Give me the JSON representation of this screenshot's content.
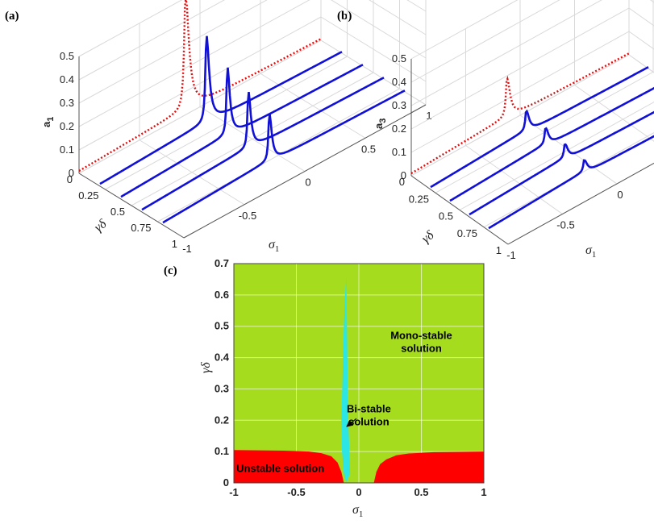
{
  "panels": {
    "a": {
      "label": "(a)",
      "zlabel_main": "a",
      "zlabel_sub": "1"
    },
    "b": {
      "label": "(b)",
      "zlabel_main": "a",
      "zlabel_sub": "3"
    },
    "c": {
      "label": "(c)"
    }
  },
  "chart_data": [
    {
      "type": "line",
      "panel": "a",
      "title": "",
      "xlabel_main": "σ",
      "xlabel_sub": "1",
      "ylabel": "γδ",
      "zlabel_main": "a",
      "zlabel_sub": "1",
      "x_ticks": [
        "-1",
        "-0.5",
        "0",
        "0.5",
        "1"
      ],
      "y_ticks": [
        "0",
        "0.25",
        "0.5",
        "0.75",
        "1"
      ],
      "z_ticks": [
        "0",
        "0.1",
        "0.2",
        "0.3",
        "0.4",
        "0.5"
      ],
      "xlim": [
        -1,
        1
      ],
      "ylim": [
        0,
        1
      ],
      "zlim": [
        0,
        0.5
      ],
      "series": [
        {
          "name": "γδ=0",
          "gamma_delta": 0,
          "peak_sigma": -0.12,
          "peak_amplitude": 0.5,
          "width": 0.1,
          "style": "dotted red (unstable)"
        },
        {
          "name": "γδ=0.2",
          "gamma_delta": 0.2,
          "peak_sigma": -0.12,
          "peak_amplitude": 0.38,
          "width": 0.08,
          "style": "solid blue"
        },
        {
          "name": "γδ=0.4",
          "gamma_delta": 0.4,
          "peak_sigma": -0.12,
          "peak_amplitude": 0.3,
          "width": 0.07,
          "style": "solid blue"
        },
        {
          "name": "γδ=0.6",
          "gamma_delta": 0.6,
          "peak_sigma": -0.12,
          "peak_amplitude": 0.25,
          "width": 0.07,
          "style": "solid blue"
        },
        {
          "name": "γδ=0.8",
          "gamma_delta": 0.8,
          "peak_sigma": -0.12,
          "peak_amplitude": 0.21,
          "width": 0.07,
          "style": "solid blue"
        }
      ]
    },
    {
      "type": "line",
      "panel": "b",
      "title": "",
      "xlabel_main": "σ",
      "xlabel_sub": "1",
      "ylabel": "γδ",
      "zlabel_main": "a",
      "zlabel_sub": "3",
      "x_ticks": [
        "-1",
        "-0.5",
        "0",
        "0.5",
        "1"
      ],
      "y_ticks": [
        "0",
        "0.25",
        "0.5",
        "0.75",
        "1"
      ],
      "z_ticks": [
        "0",
        "0.1",
        "0.2",
        "0.3",
        "0.4",
        "0.5"
      ],
      "xlim": [
        -1,
        1
      ],
      "ylim": [
        0,
        1
      ],
      "zlim": [
        0,
        0.5
      ],
      "series": [
        {
          "name": "γδ=0",
          "gamma_delta": 0,
          "peak_sigma": -0.12,
          "peak_amplitude": 0.17,
          "width": 0.1,
          "style": "dotted red (unstable)"
        },
        {
          "name": "γδ=0.2",
          "gamma_delta": 0.2,
          "peak_sigma": -0.12,
          "peak_amplitude": 0.09,
          "width": 0.09,
          "style": "solid blue"
        },
        {
          "name": "γδ=0.4",
          "gamma_delta": 0.4,
          "peak_sigma": -0.12,
          "peak_amplitude": 0.075,
          "width": 0.09,
          "style": "solid blue"
        },
        {
          "name": "γδ=0.6",
          "gamma_delta": 0.6,
          "peak_sigma": -0.12,
          "peak_amplitude": 0.065,
          "width": 0.09,
          "style": "solid blue"
        },
        {
          "name": "γδ=0.8",
          "gamma_delta": 0.8,
          "peak_sigma": -0.12,
          "peak_amplitude": 0.055,
          "width": 0.09,
          "style": "solid blue"
        }
      ]
    },
    {
      "type": "area",
      "panel": "c",
      "title": "",
      "xlabel_main": "σ",
      "xlabel_sub": "1",
      "ylabel": "γδ",
      "xlim": [
        -1,
        1
      ],
      "ylim": [
        0,
        0.7
      ],
      "x_ticks": [
        "-1",
        "-0.5",
        "0",
        "0.5",
        "1"
      ],
      "y_ticks": [
        "0",
        "0.1",
        "0.2",
        "0.3",
        "0.4",
        "0.5",
        "0.6",
        "0.7"
      ],
      "grid": true,
      "regions": [
        {
          "name": "Mono-stable solution",
          "label_line1": "Mono-stable",
          "label_line2": "solution",
          "color": "#a6dc1e"
        },
        {
          "name": "Bi-stable solution",
          "label_line1": "Bi-stable",
          "label_line2": "solution",
          "color": "#2ce6e6",
          "sigma_left": [
            -0.1,
            -0.12,
            -0.135,
            -0.14,
            -0.13,
            -0.12,
            -0.11,
            -0.1
          ],
          "sigma_right": [
            -0.1,
            -0.07,
            -0.075,
            -0.085,
            -0.09,
            -0.095,
            -0.098,
            -0.1
          ],
          "gamma_delta": [
            0,
            0.03,
            0.1,
            0.2,
            0.35,
            0.5,
            0.6,
            0.66
          ]
        },
        {
          "name": "Unstable solution",
          "label": "Unstable solution",
          "color": "#ff0000",
          "left_boundary": {
            "sigma": [
              -1,
              -0.6,
              -0.4,
              -0.3,
              -0.22,
              -0.17,
              -0.14,
              -0.12
            ],
            "gamma_delta": [
              0.105,
              0.103,
              0.1,
              0.095,
              0.085,
              0.065,
              0.035,
              0
            ]
          },
          "right_boundary": {
            "sigma": [
              0.12,
              0.14,
              0.17,
              0.22,
              0.3,
              0.4,
              0.6,
              1
            ],
            "gamma_delta": [
              0,
              0.035,
              0.06,
              0.075,
              0.088,
              0.094,
              0.098,
              0.1
            ]
          }
        }
      ]
    }
  ],
  "colors": {
    "stable": "#1010d8",
    "unstable": "#e01010",
    "mono": "#a6dc1e",
    "bi": "#2ce6e6",
    "unstable_region": "#ff0000",
    "grid": "#d9d9d9"
  }
}
